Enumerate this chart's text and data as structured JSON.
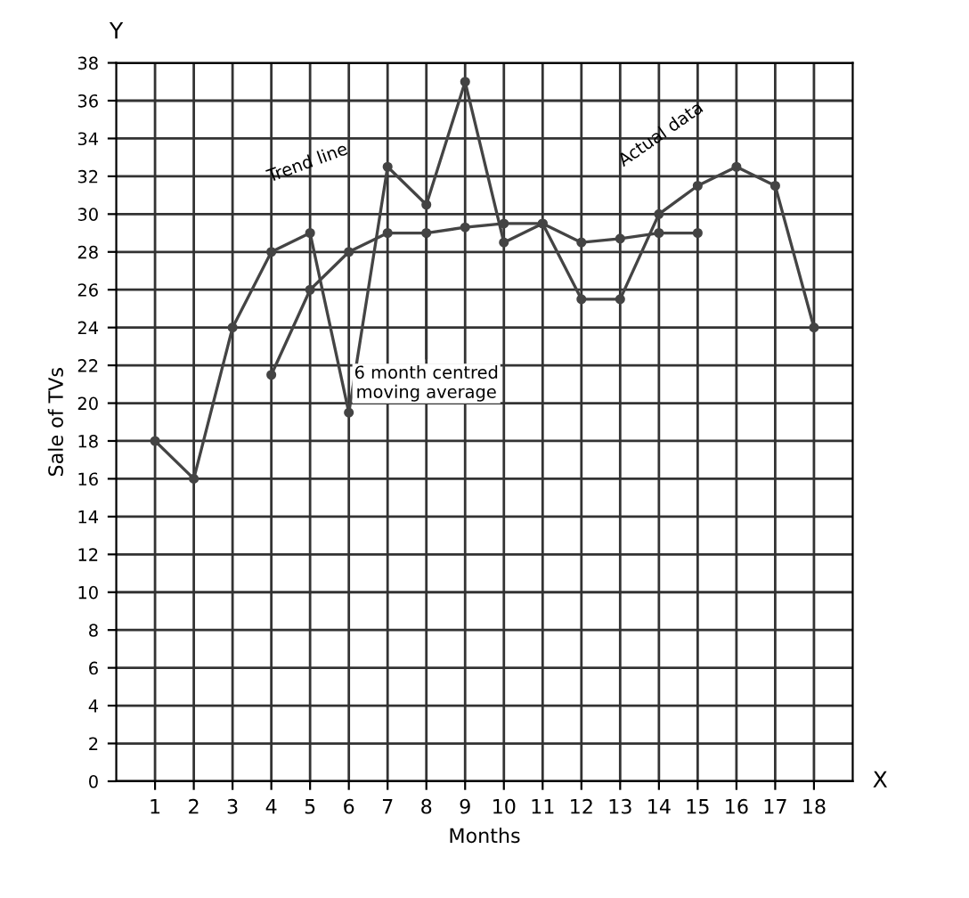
{
  "chart_data": {
    "type": "line",
    "xlabel": "Months",
    "ylabel": "Sale of TVs",
    "xlim": [
      0,
      19
    ],
    "ylim": [
      0,
      38
    ],
    "xticks": [
      1,
      2,
      3,
      4,
      5,
      6,
      7,
      8,
      9,
      10,
      11,
      12,
      13,
      14,
      15,
      16,
      17,
      18
    ],
    "yticks": [
      0,
      2,
      4,
      6,
      8,
      10,
      12,
      14,
      16,
      18,
      20,
      22,
      24,
      26,
      28,
      30,
      32,
      34,
      36,
      38
    ],
    "grid": true,
    "marker": "circle",
    "line_style": "solid",
    "series": [
      {
        "color": "#444444",
        "x": [
          1,
          2,
          3,
          4,
          5,
          6,
          7,
          8,
          9,
          10,
          11,
          12,
          13,
          14,
          15,
          16,
          17,
          18
        ],
        "values": [
          18,
          16,
          24,
          28,
          29,
          19.5,
          32.5,
          30.5,
          37,
          28.5,
          29.5,
          25.5,
          25.5,
          30,
          31.5,
          32.5,
          31.5,
          24
        ]
      },
      {
        "color": "#444444",
        "x": [
          4,
          5,
          6,
          7,
          8,
          9,
          10,
          11,
          12,
          13,
          14,
          15
        ],
        "values": [
          21.5,
          26,
          28,
          29,
          29,
          29.3,
          29.5,
          29.5,
          28.5,
          28.7,
          29,
          29
        ]
      }
    ],
    "annotations": [
      "Trend line",
      "Actual data",
      {
        "text": "6 month centred\nmoving average",
        "x": 8,
        "y": 29
      },
      "X",
      "Y"
    ]
  }
}
